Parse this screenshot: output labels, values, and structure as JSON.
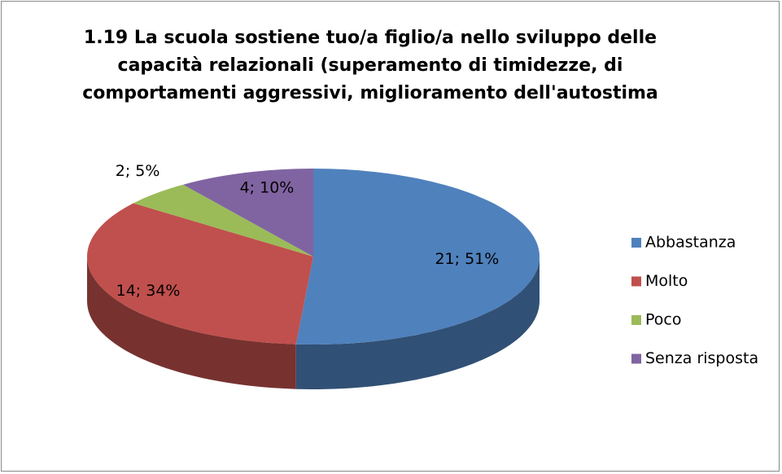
{
  "chart_data": {
    "type": "pie",
    "title": [
      "1.19 La scuola sostiene tuo/a figlio/a nello sviluppo delle",
      "capacità relazionali (superamento di timidezze, di",
      "comportamenti aggressivi, miglioramento dell'autostima"
    ],
    "categories": [
      "Abbastanza",
      "Molto",
      "Poco",
      "Senza risposta"
    ],
    "values": [
      21,
      14,
      2,
      4
    ],
    "value_labels": [
      "21; 51%",
      "14; 34%",
      "2; 5%",
      "4; 10%"
    ],
    "colors": [
      "#4f81bd",
      "#c0504d",
      "#9bbb59",
      "#8064a2"
    ],
    "legend": "right"
  }
}
